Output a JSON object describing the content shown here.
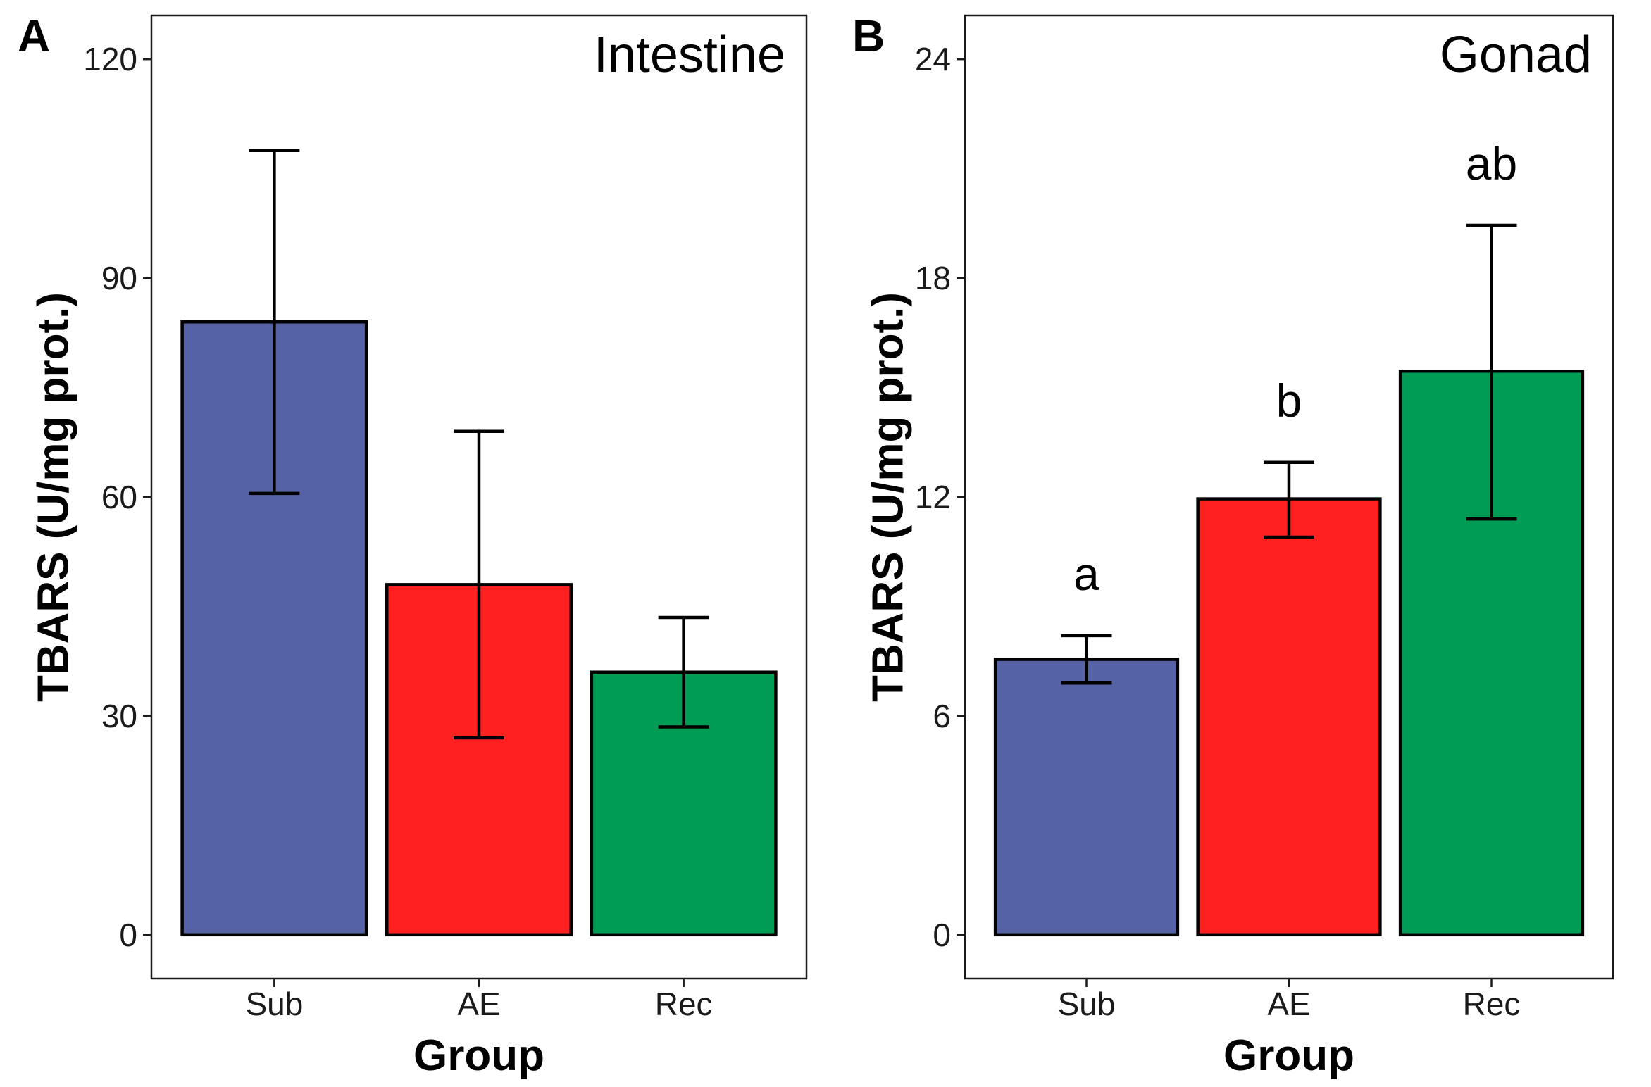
{
  "chart_data": [
    {
      "type": "bar",
      "panel_label": "A",
      "title": "Intestine",
      "xlabel": "Group",
      "ylabel": "TBARS (U/mg prot.)",
      "categories": [
        "Sub",
        "AE",
        "Rec"
      ],
      "values": [
        84,
        48,
        36
      ],
      "error_low": [
        60.5,
        27,
        28.5
      ],
      "error_high": [
        107.5,
        69,
        43.5
      ],
      "colors": [
        "#5563A6",
        "#FF2020",
        "#009B55"
      ],
      "ylim": [
        -6,
        126
      ],
      "yticks": [
        0,
        30,
        60,
        90,
        120
      ],
      "ytick_labels": [
        "0",
        "30",
        "60",
        "90",
        "120"
      ],
      "significance": []
    },
    {
      "type": "bar",
      "panel_label": "B",
      "title": "Gonad",
      "xlabel": "Group",
      "ylabel": "TBARS (U/mg prot.)",
      "categories": [
        "Sub",
        "AE",
        "Rec"
      ],
      "values": [
        7.55,
        11.95,
        15.45
      ],
      "error_low": [
        6.9,
        10.9,
        11.4
      ],
      "error_high": [
        8.2,
        12.95,
        19.45
      ],
      "colors": [
        "#5563A6",
        "#FF2020",
        "#009B55"
      ],
      "ylim": [
        -1.2,
        25.2
      ],
      "yticks": [
        0,
        6,
        12,
        18,
        24
      ],
      "ytick_labels": [
        "0",
        "6",
        "12",
        "18",
        "24"
      ],
      "significance": [
        "a",
        "b",
        "ab"
      ]
    }
  ]
}
